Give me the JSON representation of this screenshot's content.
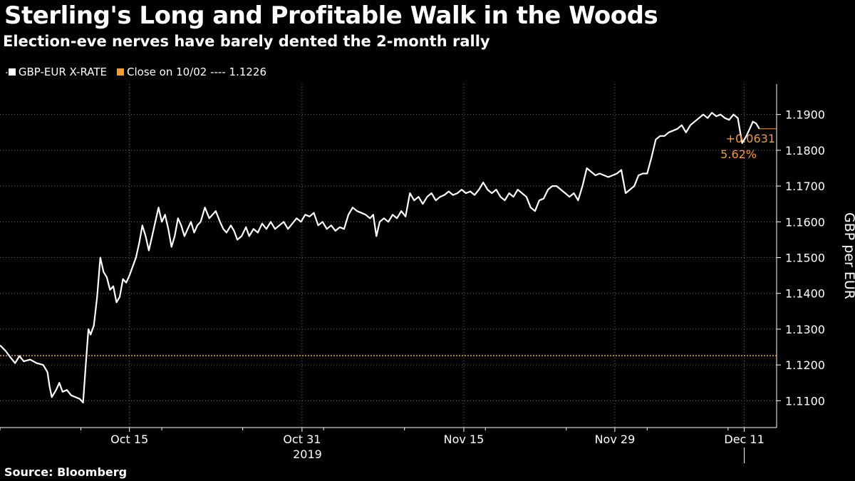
{
  "header": {
    "title": "Sterling's Long and Profitable Walk in the Woods",
    "subtitle": "Election-eve nerves have barely dented the 2-month rally"
  },
  "legend": {
    "series_label": "GBP-EUR X-RATE",
    "series_color": "#ffffff",
    "ref_label": "Close on 10/02 ---- 1.1226",
    "ref_color": "#f39c35"
  },
  "footer": {
    "source": "Source: Bloomberg"
  },
  "chart_data": {
    "type": "line",
    "title": "Sterling's Long and Profitable Walk in the Woods",
    "subtitle": "Election-eve nerves have barely dented the 2-month rally",
    "xlabel": "2019",
    "ylabel": "GBP per EUR",
    "ylim": [
      1.1025,
      1.1985
    ],
    "yticks": [
      1.11,
      1.12,
      1.13,
      1.14,
      1.15,
      1.16,
      1.17,
      1.18,
      1.19
    ],
    "ytick_labels": [
      "1.1100",
      "1.1200",
      "1.1300",
      "1.1400",
      "1.1500",
      "1.1600",
      "1.1700",
      "1.1800",
      "1.1900"
    ],
    "xlim_day": [
      -12,
      60
    ],
    "xticks": [
      {
        "label": "Oct 15",
        "day": 0
      },
      {
        "label": "Oct 31",
        "day": 16
      },
      {
        "label": "Nov 15",
        "day": 31
      },
      {
        "label": "Nov 29",
        "day": 45
      },
      {
        "label": "Dec 11",
        "day": 57
      }
    ],
    "x_note": "day = days since Oct 15, 2019",
    "grid": true,
    "legend_position": "top-left",
    "series": [
      {
        "name": "GBP-EUR X-RATE",
        "color": "#ffffff",
        "points": [
          [
            -12.0,
            1.1255
          ],
          [
            -11.5,
            1.124
          ],
          [
            -11.0,
            1.122
          ],
          [
            -10.6,
            1.1205
          ],
          [
            -10.2,
            1.1225
          ],
          [
            -9.8,
            1.121
          ],
          [
            -9.2,
            1.1215
          ],
          [
            -8.6,
            1.1205
          ],
          [
            -8.0,
            1.12
          ],
          [
            -7.6,
            1.118
          ],
          [
            -7.4,
            1.114
          ],
          [
            -7.2,
            1.111
          ],
          [
            -6.8,
            1.113
          ],
          [
            -6.5,
            1.115
          ],
          [
            -6.2,
            1.1125
          ],
          [
            -5.8,
            1.113
          ],
          [
            -5.4,
            1.1115
          ],
          [
            -5.0,
            1.111
          ],
          [
            -4.6,
            1.1105
          ],
          [
            -4.3,
            1.1095
          ],
          [
            -4.0,
            1.122
          ],
          [
            -3.8,
            1.13
          ],
          [
            -3.6,
            1.1285
          ],
          [
            -3.3,
            1.131
          ],
          [
            -3.0,
            1.139
          ],
          [
            -2.7,
            1.15
          ],
          [
            -2.4,
            1.146
          ],
          [
            -2.1,
            1.1445
          ],
          [
            -1.8,
            1.141
          ],
          [
            -1.5,
            1.142
          ],
          [
            -1.2,
            1.1375
          ],
          [
            -0.9,
            1.139
          ],
          [
            -0.6,
            1.144
          ],
          [
            -0.3,
            1.143
          ],
          [
            0.0,
            1.145
          ],
          [
            0.3,
            1.1475
          ],
          [
            0.6,
            1.15
          ],
          [
            0.9,
            1.154
          ],
          [
            1.2,
            1.159
          ],
          [
            1.5,
            1.156
          ],
          [
            1.8,
            1.152
          ],
          [
            2.1,
            1.156
          ],
          [
            2.4,
            1.16
          ],
          [
            2.7,
            1.164
          ],
          [
            3.0,
            1.16
          ],
          [
            3.3,
            1.162
          ],
          [
            3.6,
            1.158
          ],
          [
            3.9,
            1.153
          ],
          [
            4.2,
            1.156
          ],
          [
            4.5,
            1.161
          ],
          [
            4.8,
            1.159
          ],
          [
            5.1,
            1.156
          ],
          [
            5.4,
            1.158
          ],
          [
            5.7,
            1.16
          ],
          [
            6.0,
            1.157
          ],
          [
            6.3,
            1.159
          ],
          [
            6.6,
            1.16
          ],
          [
            7.0,
            1.164
          ],
          [
            7.4,
            1.161
          ],
          [
            7.7,
            1.162
          ],
          [
            8.0,
            1.163
          ],
          [
            8.4,
            1.16
          ],
          [
            8.7,
            1.158
          ],
          [
            9.0,
            1.157
          ],
          [
            9.4,
            1.159
          ],
          [
            9.7,
            1.1575
          ],
          [
            10.0,
            1.155
          ],
          [
            10.4,
            1.156
          ],
          [
            10.8,
            1.1585
          ],
          [
            11.1,
            1.156
          ],
          [
            11.5,
            1.158
          ],
          [
            11.9,
            1.157
          ],
          [
            12.3,
            1.1595
          ],
          [
            12.7,
            1.158
          ],
          [
            13.1,
            1.16
          ],
          [
            13.5,
            1.158
          ],
          [
            13.9,
            1.159
          ],
          [
            14.3,
            1.16
          ],
          [
            14.7,
            1.158
          ],
          [
            15.1,
            1.1595
          ],
          [
            15.5,
            1.161
          ],
          [
            15.9,
            1.16
          ],
          [
            16.3,
            1.162
          ],
          [
            16.7,
            1.1615
          ],
          [
            17.1,
            1.1625
          ],
          [
            17.5,
            1.159
          ],
          [
            17.9,
            1.16
          ],
          [
            18.3,
            1.158
          ],
          [
            18.7,
            1.159
          ],
          [
            19.1,
            1.1575
          ],
          [
            19.5,
            1.1585
          ],
          [
            19.9,
            1.158
          ],
          [
            20.3,
            1.162
          ],
          [
            20.7,
            1.164
          ],
          [
            21.1,
            1.163
          ],
          [
            21.5,
            1.1625
          ],
          [
            21.9,
            1.162
          ],
          [
            22.3,
            1.161
          ],
          [
            22.6,
            1.162
          ],
          [
            22.9,
            1.156
          ],
          [
            23.2,
            1.16
          ],
          [
            23.6,
            1.161
          ],
          [
            24.0,
            1.16
          ],
          [
            24.4,
            1.162
          ],
          [
            24.8,
            1.161
          ],
          [
            25.2,
            1.163
          ],
          [
            25.6,
            1.1615
          ],
          [
            26.0,
            1.168
          ],
          [
            26.4,
            1.166
          ],
          [
            26.8,
            1.167
          ],
          [
            27.2,
            1.165
          ],
          [
            27.6,
            1.167
          ],
          [
            28.0,
            1.168
          ],
          [
            28.4,
            1.166
          ],
          [
            28.8,
            1.167
          ],
          [
            29.2,
            1.1675
          ],
          [
            29.6,
            1.1685
          ],
          [
            30.0,
            1.1675
          ],
          [
            30.4,
            1.168
          ],
          [
            30.8,
            1.169
          ],
          [
            31.2,
            1.168
          ],
          [
            31.6,
            1.1685
          ],
          [
            32.0,
            1.1675
          ],
          [
            32.4,
            1.169
          ],
          [
            32.8,
            1.171
          ],
          [
            33.2,
            1.169
          ],
          [
            33.6,
            1.168
          ],
          [
            34.0,
            1.169
          ],
          [
            34.4,
            1.167
          ],
          [
            34.8,
            1.166
          ],
          [
            35.2,
            1.168
          ],
          [
            35.6,
            1.167
          ],
          [
            36.0,
            1.169
          ],
          [
            36.4,
            1.168
          ],
          [
            36.8,
            1.167
          ],
          [
            37.2,
            1.164
          ],
          [
            37.6,
            1.163
          ],
          [
            38.0,
            1.166
          ],
          [
            38.4,
            1.1665
          ],
          [
            38.8,
            1.169
          ],
          [
            39.2,
            1.17
          ],
          [
            39.6,
            1.17
          ],
          [
            40.0,
            1.169
          ],
          [
            40.4,
            1.168
          ],
          [
            40.8,
            1.167
          ],
          [
            41.2,
            1.168
          ],
          [
            41.6,
            1.166
          ],
          [
            42.0,
            1.17
          ],
          [
            42.4,
            1.175
          ],
          [
            42.8,
            1.174
          ],
          [
            43.2,
            1.173
          ],
          [
            43.6,
            1.1735
          ],
          [
            44.0,
            1.173
          ],
          [
            44.4,
            1.1725
          ],
          [
            44.8,
            1.173
          ],
          [
            45.2,
            1.1735
          ],
          [
            45.6,
            1.1745
          ],
          [
            46.0,
            1.168
          ],
          [
            46.4,
            1.169
          ],
          [
            46.8,
            1.17
          ],
          [
            47.2,
            1.173
          ],
          [
            47.6,
            1.1735
          ],
          [
            48.0,
            1.1735
          ],
          [
            48.4,
            1.178
          ],
          [
            48.8,
            1.183
          ],
          [
            49.2,
            1.184
          ],
          [
            49.6,
            1.184
          ],
          [
            50.0,
            1.185
          ],
          [
            50.4,
            1.1855
          ],
          [
            50.8,
            1.186
          ],
          [
            51.2,
            1.187
          ],
          [
            51.6,
            1.185
          ],
          [
            52.0,
            1.187
          ],
          [
            52.4,
            1.188
          ],
          [
            52.8,
            1.189
          ],
          [
            53.2,
            1.19
          ],
          [
            53.6,
            1.189
          ],
          [
            54.0,
            1.1905
          ],
          [
            54.4,
            1.1895
          ],
          [
            54.8,
            1.19
          ],
          [
            55.2,
            1.189
          ],
          [
            55.6,
            1.1885
          ],
          [
            56.0,
            1.19
          ],
          [
            56.4,
            1.189
          ],
          [
            56.8,
            1.182
          ],
          [
            57.2,
            1.184
          ],
          [
            57.5,
            1.186
          ],
          [
            57.8,
            1.188
          ],
          [
            58.1,
            1.1875
          ],
          [
            58.4,
            1.186
          ]
        ]
      }
    ],
    "reference_line": {
      "label": "Close on 10/02",
      "value": 1.1226,
      "color": "#f39c35",
      "style": "dotted"
    },
    "annotations": [
      {
        "text": "+0.0631",
        "color": "#f39c35"
      },
      {
        "text": "5.62%",
        "color": "#f39c35"
      }
    ]
  }
}
